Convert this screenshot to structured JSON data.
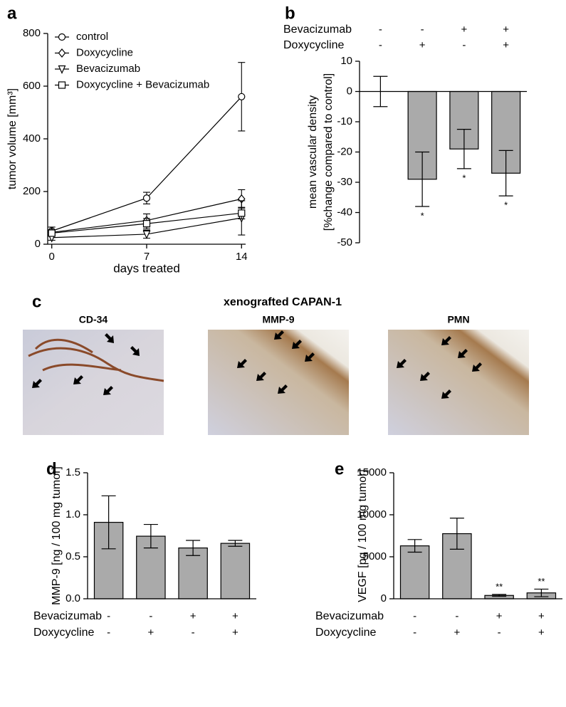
{
  "chart_data": [
    {
      "type": "line",
      "panel": "a",
      "x": [
        0,
        7,
        14
      ],
      "xlim": [
        -0.3,
        14.3
      ],
      "xticks": [
        0,
        7,
        14
      ],
      "ylim": [
        0,
        800
      ],
      "yticks": [
        0,
        200,
        400,
        600,
        800
      ],
      "xlabel": "days treated",
      "ylabel": "tumor volume [mm³]",
      "legend": "upper left",
      "series": [
        {
          "name": "control",
          "color": "#000000",
          "marker": "circle",
          "values": [
            50,
            175,
            560
          ],
          "errors": [
            15,
            22,
            130
          ]
        },
        {
          "name": "Doxycycline",
          "color": "#000000",
          "marker": "diamond",
          "values": [
            45,
            90,
            172
          ],
          "errors": [
            10,
            25,
            35
          ]
        },
        {
          "name": "Bevacizumab",
          "color": "#000000",
          "marker": "triangle_down",
          "values": [
            25,
            38,
            100
          ],
          "errors": [
            10,
            15,
            65
          ]
        },
        {
          "name": "Doxycycline + Bevacizumab",
          "color": "#000000",
          "marker": "square",
          "values": [
            42,
            78,
            118
          ],
          "errors": [
            10,
            20,
            22
          ]
        }
      ]
    },
    {
      "type": "bar",
      "panel": "b",
      "color": "#aaaaaa",
      "values": [
        0,
        -29,
        -19,
        -27
      ],
      "errors": [
        5,
        9,
        6.5,
        7.5
      ],
      "value_annotations": [
        null,
        "*",
        "*",
        "*"
      ],
      "ylim": [
        -50,
        10
      ],
      "yticks": [
        10,
        0,
        -10,
        -20,
        -30,
        -40,
        -50
      ],
      "ylabel": [
        "mean vascular density",
        "[%change compared to control]"
      ],
      "conditions": [
        {
          "name": "Bevacizumab",
          "values": [
            "-",
            "-",
            "+",
            "+"
          ]
        },
        {
          "name": "Doxycycline",
          "values": [
            "-",
            "+",
            "-",
            "+"
          ]
        }
      ]
    },
    {
      "type": "bar",
      "panel": "d",
      "color": "#aaaaaa",
      "values": [
        0.91,
        0.745,
        0.605,
        0.66
      ],
      "errors": [
        0.315,
        0.14,
        0.09,
        0.035
      ],
      "ylim": [
        0,
        1.5
      ],
      "yticks": [
        {
          "value": 0,
          "label": "0.0"
        },
        0.5,
        {
          "value": 1,
          "label": "1.0"
        },
        1.5
      ],
      "ylabel": [
        "MMP-9 [ng / 100 mg tumor]"
      ],
      "conditions": [
        {
          "name": "Bevacizumab",
          "values": [
            "-",
            "-",
            "+",
            "+"
          ]
        },
        {
          "name": "Doxycycline",
          "values": [
            "-",
            "+",
            "-",
            "+"
          ]
        }
      ]
    },
    {
      "type": "bar",
      "panel": "e",
      "color": "#aaaaaa",
      "values": [
        6300,
        7750,
        400,
        700
      ],
      "errors": [
        750,
        1850,
        120,
        450
      ],
      "value_annotations": [
        null,
        null,
        "**",
        "**"
      ],
      "ylim": [
        0,
        15000
      ],
      "yticks": [
        0,
        5000,
        10000,
        15000
      ],
      "ylabel": [
        "VEGF [pg  / 100 mg tumor]"
      ],
      "conditions": [
        {
          "name": "Bevacizumab",
          "values": [
            "-",
            "-",
            "+",
            "+"
          ]
        },
        {
          "name": "Doxycycline",
          "values": [
            "-",
            "+",
            "-",
            "+"
          ]
        }
      ]
    }
  ],
  "figure_c": {
    "panel": "c",
    "title": "xenografted CAPAN-1",
    "images": [
      "CD-34",
      "MMP-9",
      "PMN"
    ]
  }
}
